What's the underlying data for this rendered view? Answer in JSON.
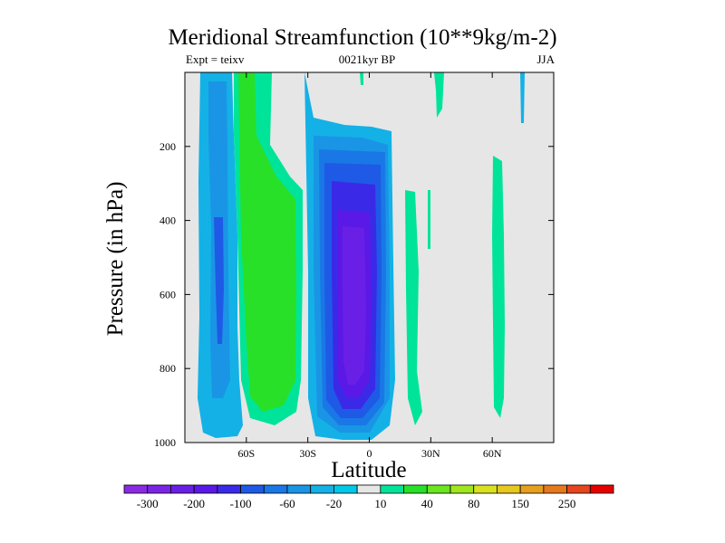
{
  "chart_data": {
    "type": "heatmap",
    "title": "Meridional Streamfunction (10**9kg/m-2)",
    "subtitle_left": "Expt = teixv",
    "subtitle_center": "0021kyr BP",
    "subtitle_right": "JJA",
    "xlabel": "Latitude",
    "ylabel": "Pressure (in hPa)",
    "xlim": [
      -90,
      90
    ],
    "ylim": [
      1000,
      0
    ],
    "y_scale": "linear (reversed)",
    "x_ticks": [
      {
        "value": -60,
        "label": "60S"
      },
      {
        "value": -30,
        "label": "30S"
      },
      {
        "value": 0,
        "label": "0"
      },
      {
        "value": 30,
        "label": "30N"
      },
      {
        "value": 60,
        "label": "60N"
      }
    ],
    "y_ticks": [
      200,
      400,
      600,
      800,
      1000
    ],
    "background_color": "#e6e6e6",
    "colorbar": {
      "levels": [
        -300,
        -250,
        -200,
        -150,
        -100,
        -80,
        -60,
        -40,
        -20,
        -10,
        10,
        20,
        40,
        60,
        80,
        100,
        150,
        200,
        250,
        300
      ],
      "labels": [
        "-300",
        "-200",
        "-100",
        "-60",
        "-20",
        "10",
        "40",
        "80",
        "150",
        "250"
      ],
      "colors": [
        "#8a2be2",
        "#7a25e6",
        "#6a1fe6",
        "#5a19e6",
        "#3a2ae8",
        "#1e5ae6",
        "#1978e6",
        "#1a95e6",
        "#14b1e6",
        "#00c8e6",
        "#e6e6e6",
        "#00e49a",
        "#28e028",
        "#6ae61e",
        "#a0e61e",
        "#d8e020",
        "#e6c81e",
        "#e6a01e",
        "#e6781e",
        "#e6461e",
        "#e60000"
      ]
    },
    "fields": [
      {
        "kind": "negative",
        "description_level": -300,
        "lat_range": [
          -12,
          12
        ],
        "p_range": [
          240,
          960
        ]
      },
      {
        "kind": "positive",
        "lat_range": [
          -50,
          -33
        ],
        "p_range": [
          0,
          960
        ]
      }
    ]
  }
}
